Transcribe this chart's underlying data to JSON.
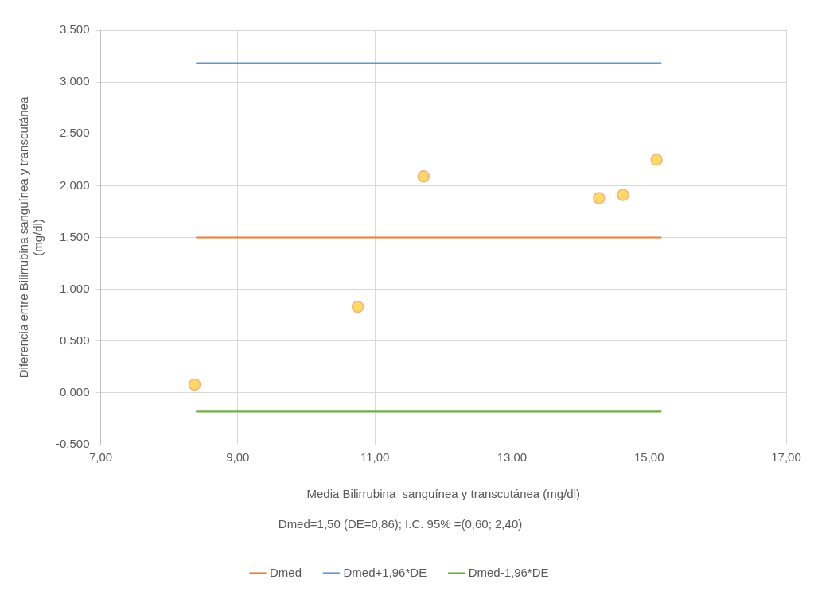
{
  "chart_data": {
    "type": "scatter",
    "xlabel": "Media Bilirrubina  sanguínea y transcutánea (mg/dl)",
    "ylabel": "Diferencia entre Bilirrubina sanguínea y transcutánea\n(mg/dl)",
    "annotations": [
      "Dmed=1,50 (DE=0,86); I.C. 95% =(0,60; 2,40)"
    ],
    "xlim": [
      7,
      17
    ],
    "xticks": [
      {
        "value": 7,
        "label": "7,00"
      },
      {
        "value": 9,
        "label": "9,00"
      },
      {
        "value": 11,
        "label": "11,00"
      },
      {
        "value": 13,
        "label": "13,00"
      },
      {
        "value": 15,
        "label": "15,00"
      },
      {
        "value": 17,
        "label": "17,00"
      }
    ],
    "ylim": [
      -0.5,
      3.5
    ],
    "yticks": [
      {
        "value": -0.5,
        "label": "-0,500"
      },
      {
        "value": 0,
        "label": "0,000"
      },
      {
        "value": 0.5,
        "label": "0,500"
      },
      {
        "value": 1,
        "label": "1,000"
      },
      {
        "value": 1.5,
        "label": "1,500"
      },
      {
        "value": 2,
        "label": "2,000"
      },
      {
        "value": 2.5,
        "label": "2,500"
      },
      {
        "value": 3,
        "label": "3,000"
      },
      {
        "value": 3.5,
        "label": "3,500"
      }
    ],
    "grid": true,
    "legend": "bottom",
    "series": [
      {
        "marker": "circle",
        "color": "#ffd966",
        "x": [
          8.37,
          10.75,
          11.71,
          14.27,
          14.62,
          15.11
        ],
        "values": [
          0.08,
          0.83,
          2.09,
          1.88,
          1.91,
          2.25
        ]
      },
      {
        "type": "line",
        "marker": "none",
        "name": "Dmed",
        "color": "#ed7d31",
        "x": [
          8.39,
          15.18
        ],
        "values": [
          1.5,
          1.5
        ]
      },
      {
        "type": "line",
        "marker": "none",
        "name": "Dmed+1,96*DE",
        "color": "#5b9bd5",
        "x": [
          8.39,
          15.18
        ],
        "values": [
          3.18,
          3.18
        ]
      },
      {
        "type": "line",
        "marker": "none",
        "name": "Dmed-1,96*DE",
        "color": "#70ad47",
        "x": [
          8.39,
          15.18
        ],
        "values": [
          -0.18,
          -0.18
        ]
      }
    ]
  }
}
